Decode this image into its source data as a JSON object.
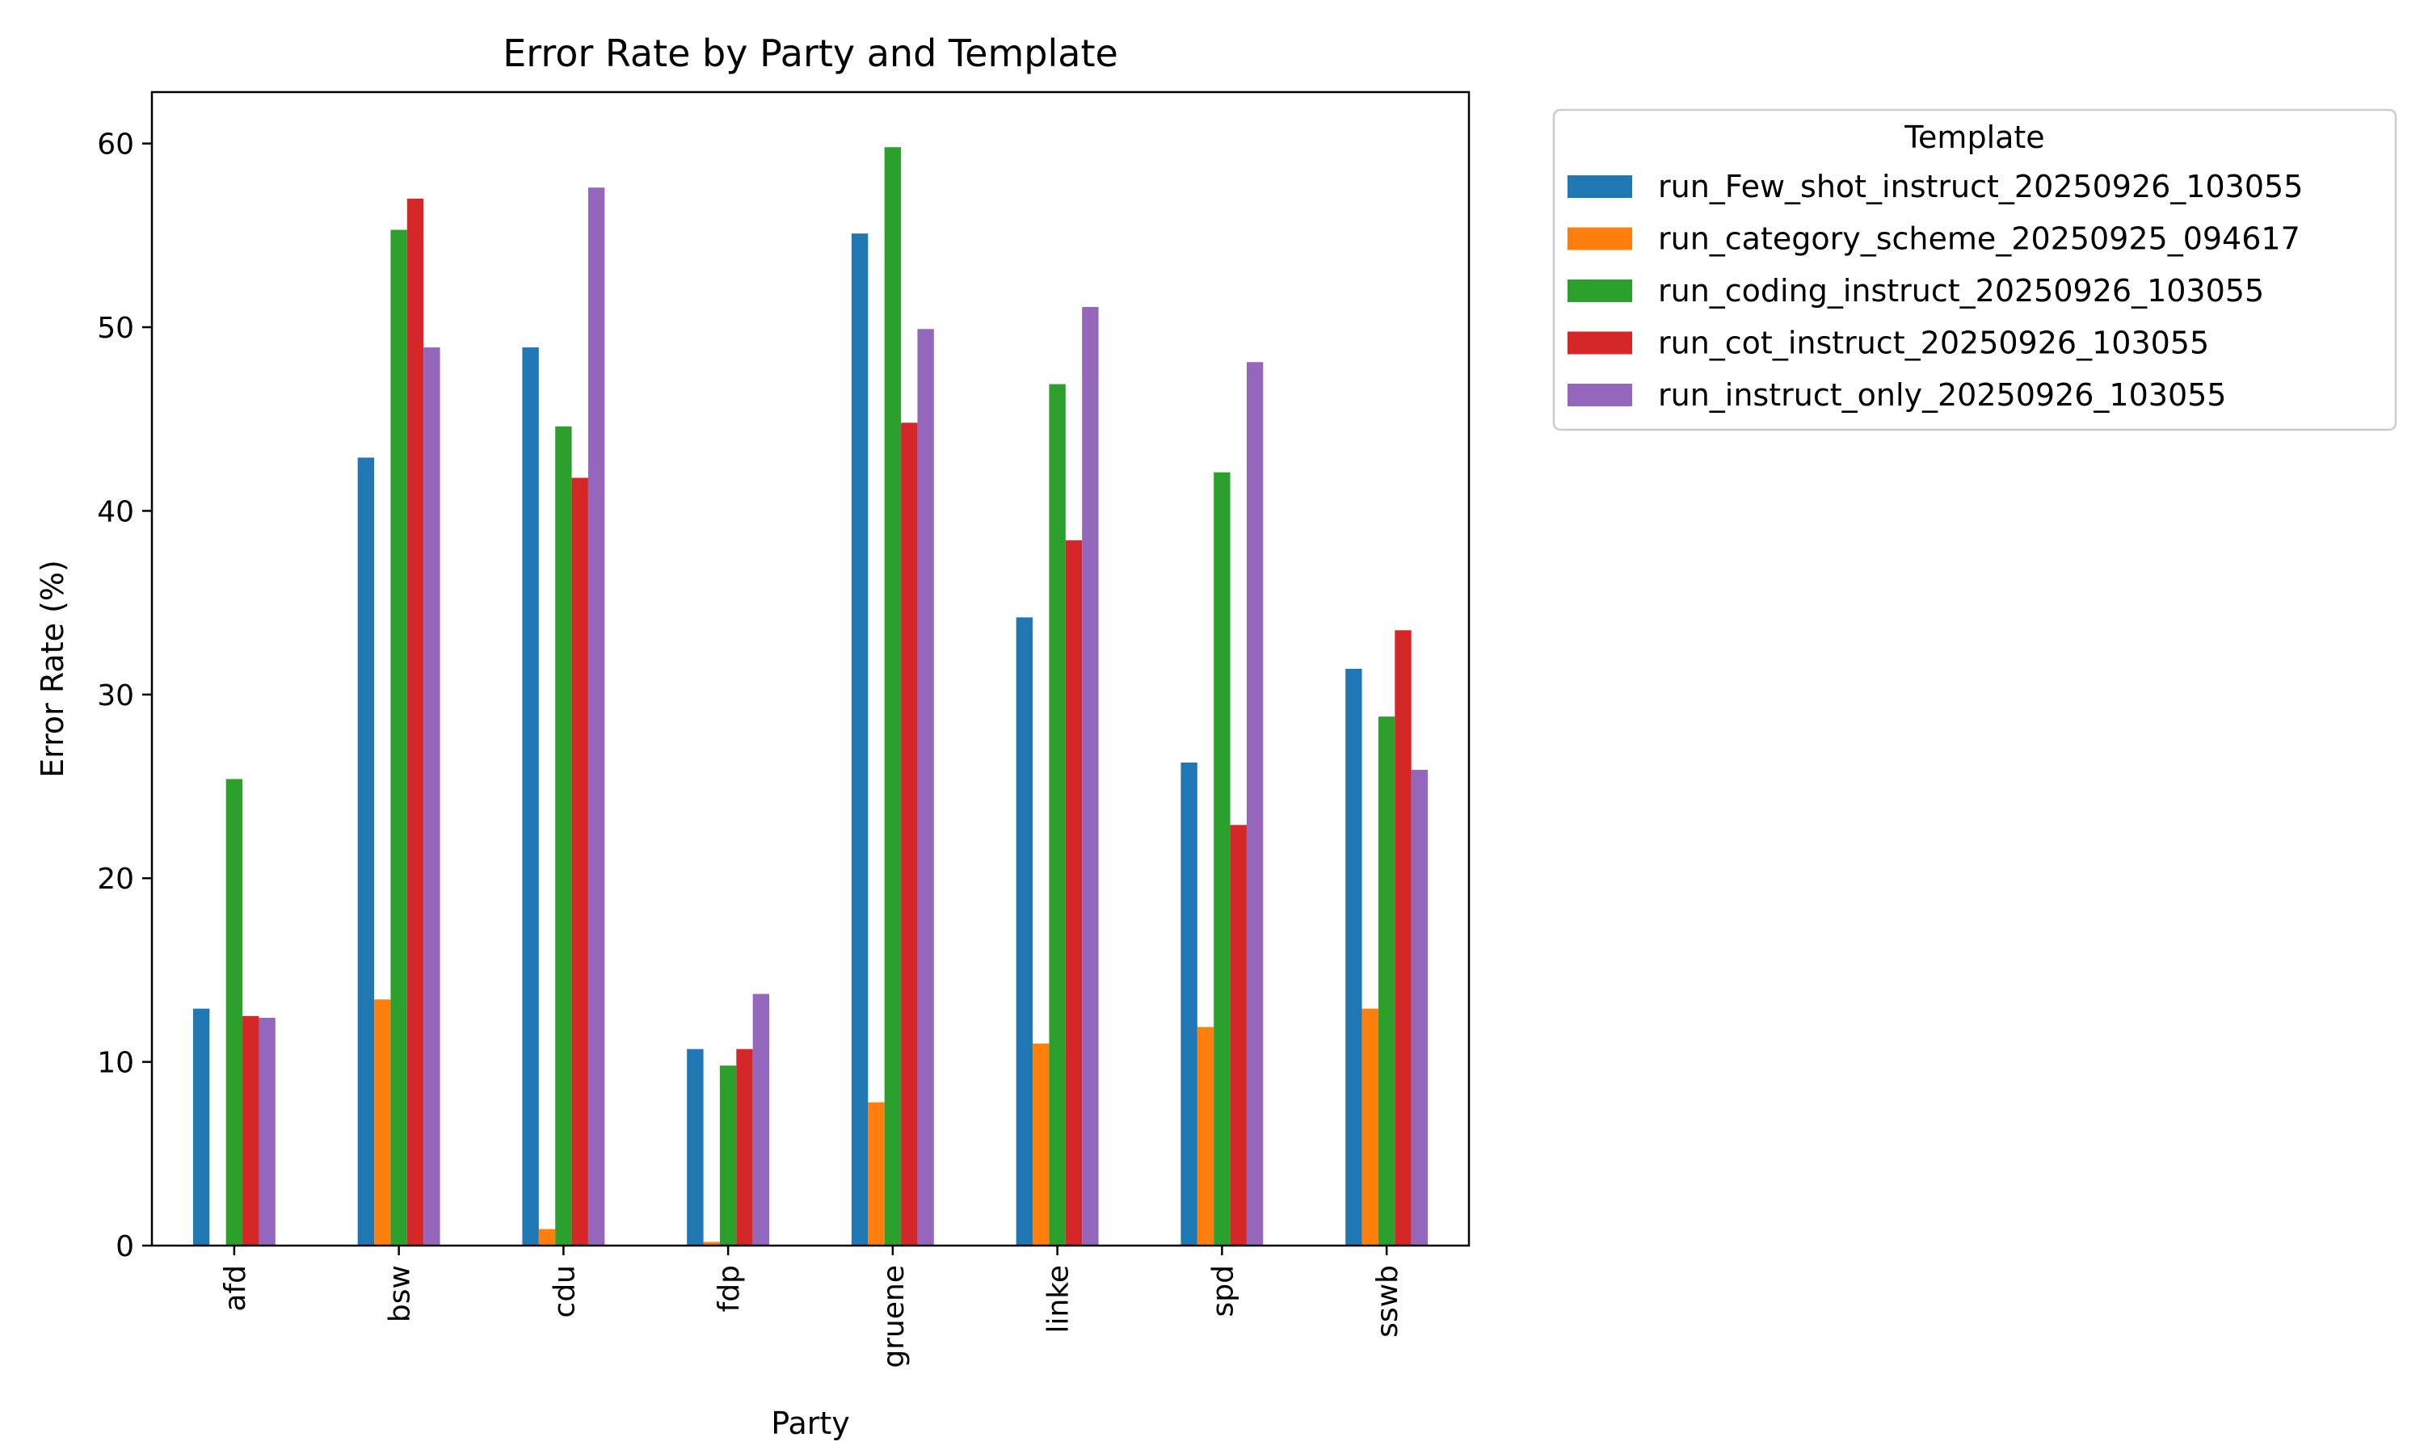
{
  "chart_data": {
    "type": "bar",
    "title": "Error Rate by Party and Template",
    "xlabel": "Party",
    "ylabel": "Error Rate (%)",
    "ylim": [
      0,
      62.8
    ],
    "yticks": [
      0,
      10,
      20,
      30,
      40,
      50,
      60
    ],
    "grid": false,
    "legend_title": "Template",
    "legend_placement": "outside-top-right",
    "categories": [
      "afd",
      "bsw",
      "cdu",
      "fdp",
      "gruene",
      "linke",
      "spd",
      "sswb"
    ],
    "series": [
      {
        "name": "run_Few_shot_instruct_20250926_103055",
        "color": "#1f77b4",
        "values": [
          12.9,
          42.9,
          48.9,
          10.7,
          55.1,
          34.2,
          26.3,
          31.4
        ]
      },
      {
        "name": "run_category_scheme_20250925_094617",
        "color": "#ff7f0e",
        "values": [
          0.0,
          13.4,
          0.9,
          0.2,
          7.8,
          11.0,
          11.9,
          12.9
        ]
      },
      {
        "name": "run_coding_instruct_20250926_103055",
        "color": "#2ca02c",
        "values": [
          25.4,
          55.3,
          44.6,
          9.8,
          59.8,
          46.9,
          42.1,
          28.8
        ]
      },
      {
        "name": "run_cot_instruct_20250926_103055",
        "color": "#d62728",
        "values": [
          12.5,
          57.0,
          41.8,
          10.7,
          44.8,
          38.4,
          22.9,
          33.5
        ]
      },
      {
        "name": "run_instruct_only_20250926_103055",
        "color": "#9467bd",
        "values": [
          12.4,
          48.9,
          57.6,
          13.7,
          49.9,
          51.1,
          48.1,
          25.9
        ]
      }
    ]
  }
}
